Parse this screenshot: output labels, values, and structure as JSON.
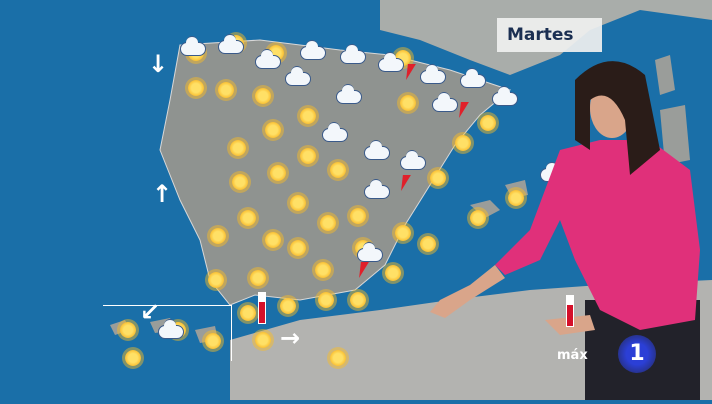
{
  "header": {
    "day_label": "Martes"
  },
  "legend": {
    "max_label": "máx"
  },
  "channel_logo": {
    "text": "1"
  },
  "colors": {
    "sea": "#1a6fa8",
    "land": "#8f9390",
    "title_text": "#1b2f52",
    "jacket": "#e0307a",
    "logo": "#2b3fd6"
  },
  "map_icons": [
    "sun-icon",
    "cloud-icon",
    "sun-behind-cloud-icon",
    "lightning-icon",
    "wind-arrow-icon",
    "thermometer-icon"
  ]
}
